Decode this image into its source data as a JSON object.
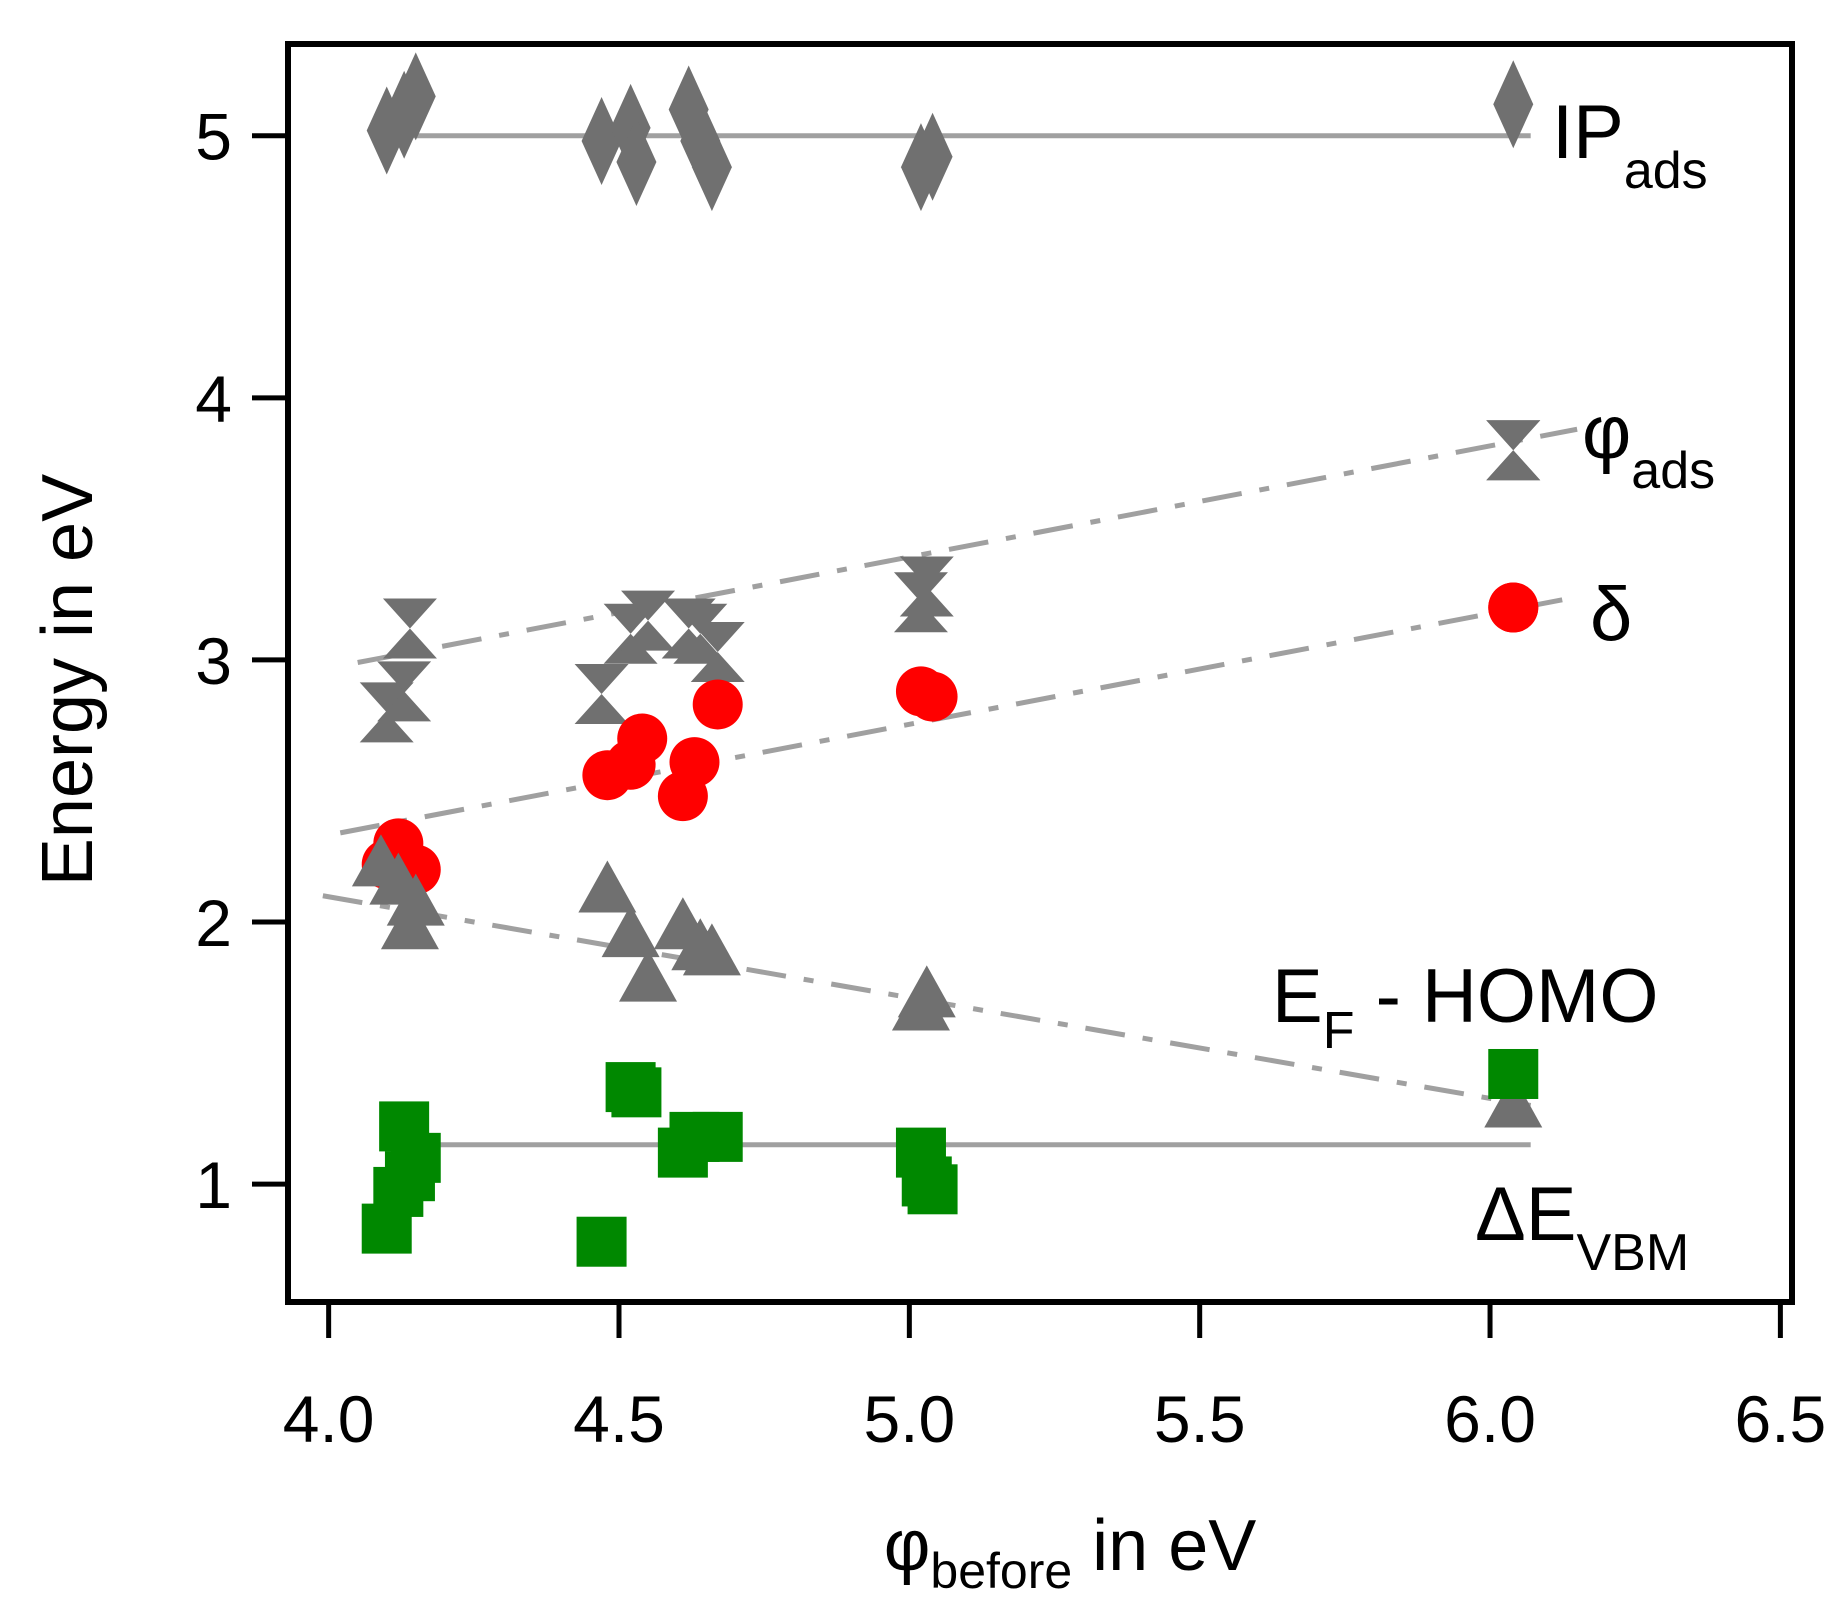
{
  "chart_data": {
    "type": "scatter",
    "xlabel": {
      "main": "φ",
      "sub": "before",
      "rest": " in eV"
    },
    "ylabel": "Energy in eV",
    "xlim": [
      3.93,
      6.52
    ],
    "ylim": [
      0.55,
      5.35
    ],
    "grid": false,
    "xticks": [
      4.0,
      4.5,
      5.0,
      5.5,
      6.0,
      6.5
    ],
    "xtick_labels": [
      "4.0",
      "4.5",
      "5.0",
      "5.5",
      "6.0",
      "6.5"
    ],
    "yticks": [
      1,
      2,
      3,
      4,
      5
    ],
    "ytick_labels": [
      "1",
      "2",
      "3",
      "4",
      "5"
    ],
    "series": [
      {
        "name": "IP_ads",
        "label_main": "IP",
        "label_sub": "ads",
        "marker": "diamond",
        "color": "#707070",
        "x": [
          4.1,
          4.13,
          4.15,
          4.47,
          4.52,
          4.53,
          4.62,
          4.64,
          4.66,
          5.02,
          5.04,
          6.04
        ],
        "y": [
          5.02,
          5.08,
          5.15,
          4.98,
          5.03,
          4.9,
          5.1,
          4.98,
          4.88,
          4.88,
          4.92,
          5.12
        ],
        "trend": {
          "style": "solid",
          "x": [
            4.12,
            6.07
          ],
          "y": [
            5.0,
            5.0
          ]
        }
      },
      {
        "name": "phi_ads",
        "label_main": "φ",
        "label_sub": "ads",
        "marker": "hourglass",
        "color": "#707070",
        "x": [
          4.1,
          4.13,
          4.14,
          4.47,
          4.52,
          4.55,
          4.62,
          4.64,
          4.67,
          5.02,
          5.03,
          6.04
        ],
        "y": [
          2.8,
          2.88,
          3.12,
          2.87,
          3.1,
          3.15,
          3.12,
          3.1,
          3.03,
          3.22,
          3.28,
          3.8
        ],
        "trend": {
          "style": "dashdot",
          "x": [
            4.05,
            6.15
          ],
          "y": [
            2.99,
            3.88
          ]
        }
      },
      {
        "name": "delta",
        "label_main": "δ",
        "label_sub": "",
        "marker": "circle",
        "color": "#ff0000",
        "x": [
          4.1,
          4.12,
          4.15,
          4.48,
          4.52,
          4.54,
          4.61,
          4.63,
          4.67,
          5.02,
          5.04,
          6.04
        ],
        "y": [
          2.22,
          2.3,
          2.2,
          2.56,
          2.6,
          2.7,
          2.48,
          2.61,
          2.83,
          2.88,
          2.86,
          3.2
        ],
        "trend": {
          "style": "dashdot",
          "x": [
            4.02,
            6.15
          ],
          "y": [
            2.34,
            3.24
          ]
        }
      },
      {
        "name": "EF-HOMO",
        "label_main": "E",
        "label_sub": "F",
        "label_rest": " - HOMO",
        "marker": "triangle",
        "color": "#707070",
        "x": [
          4.09,
          4.12,
          4.14,
          4.15,
          4.48,
          4.52,
          4.55,
          4.61,
          4.64,
          4.66,
          5.02,
          5.03,
          6.04
        ],
        "y": [
          2.22,
          2.15,
          1.98,
          2.07,
          2.12,
          1.95,
          1.78,
          1.98,
          1.9,
          1.88,
          1.67,
          1.72,
          1.3
        ],
        "trend": {
          "style": "dashdot",
          "x": [
            3.99,
            6.07
          ],
          "y": [
            2.1,
            1.3
          ]
        }
      },
      {
        "name": "ΔE_VBM",
        "label_main": "ΔE",
        "label_sub": "VBM",
        "marker": "square",
        "color": "#008800",
        "x": [
          4.1,
          4.12,
          4.13,
          4.14,
          4.15,
          4.47,
          4.52,
          4.53,
          4.61,
          4.63,
          4.67,
          5.02,
          5.03,
          5.04,
          6.04
        ],
        "y": [
          0.83,
          0.97,
          1.22,
          1.03,
          1.1,
          0.78,
          1.37,
          1.35,
          1.12,
          1.18,
          1.18,
          1.12,
          1.01,
          0.98,
          1.42
        ],
        "trend": {
          "style": "solid",
          "x": [
            4.12,
            6.07
          ],
          "y": [
            1.15,
            1.15
          ]
        }
      }
    ]
  }
}
